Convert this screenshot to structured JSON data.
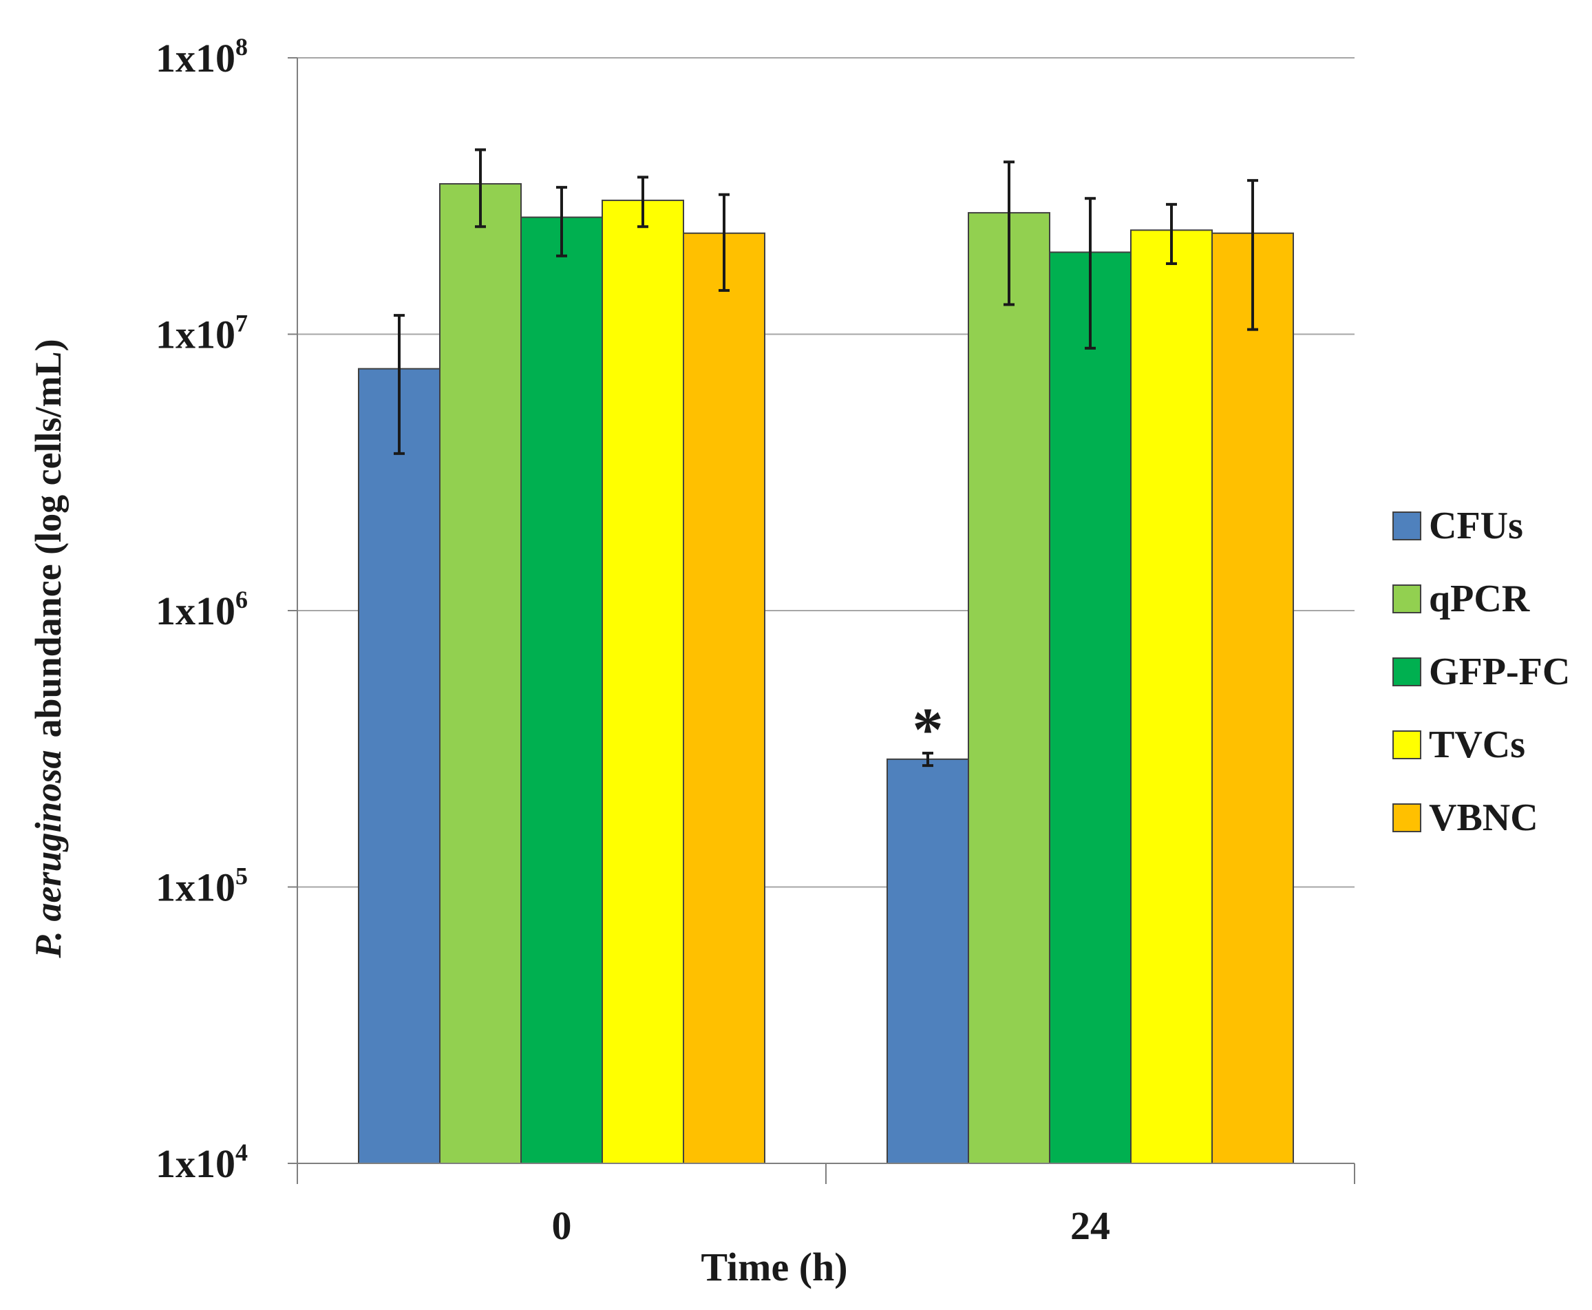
{
  "chart_data": {
    "type": "bar",
    "scale": "log",
    "title": "",
    "xlabel": "Time (h)",
    "ylabel_italic": "P. aeruginosa",
    "ylabel_rest": "abundance (log cells/mL)",
    "ylim": [
      10000,
      100000000
    ],
    "yticks": [
      {
        "value": 10000,
        "base": "1x10",
        "exp": "4"
      },
      {
        "value": 100000,
        "base": "1x10",
        "exp": "5"
      },
      {
        "value": 1000000,
        "base": "1x10",
        "exp": "6"
      },
      {
        "value": 10000000,
        "base": "1x10",
        "exp": "7"
      },
      {
        "value": 100000000,
        "base": "1x10",
        "exp": "8"
      }
    ],
    "categories": [
      "0",
      "24"
    ],
    "series": [
      {
        "name": "CFUs",
        "color": "#4f81bd",
        "values": [
          7500000,
          290000
        ],
        "err_low": [
          3700000,
          275000
        ],
        "err_high": [
          11700000,
          305000
        ]
      },
      {
        "name": "qPCR",
        "color": "#92d050",
        "values": [
          35000000,
          27500000
        ],
        "err_low": [
          24500000,
          12800000
        ],
        "err_high": [
          46500000,
          42000000
        ]
      },
      {
        "name": "GFP-FC",
        "color": "#00b050",
        "values": [
          26500000,
          19800000
        ],
        "err_low": [
          19200000,
          8900000
        ],
        "err_high": [
          34000000,
          31000000
        ]
      },
      {
        "name": "TVCs",
        "color": "#ffff00",
        "values": [
          30500000,
          23800000
        ],
        "err_low": [
          24500000,
          18000000
        ],
        "err_high": [
          37000000,
          29500000
        ]
      },
      {
        "name": "VBNC",
        "color": "#ffc000",
        "values": [
          23200000,
          23200000
        ],
        "err_low": [
          14400000,
          10400000
        ],
        "err_high": [
          32000000,
          36000000
        ]
      }
    ],
    "annotations": [
      {
        "text": "*",
        "series": "CFUs",
        "category": "24"
      }
    ],
    "gridlines": true,
    "legend": "right"
  }
}
